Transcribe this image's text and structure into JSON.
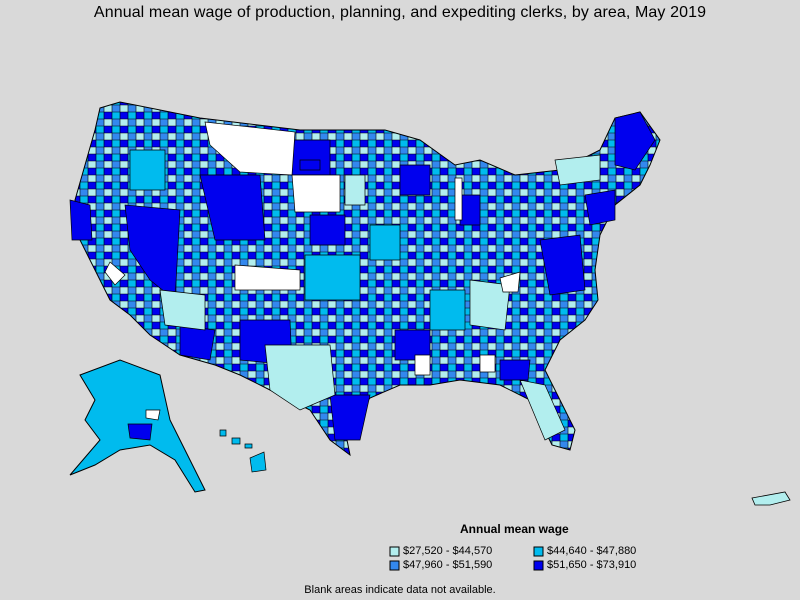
{
  "title": "Annual mean wage of production, planning, and expediting clerks, by area, May 2019",
  "colors": {
    "background": "#d9d9d9",
    "no_data": "#ffffff",
    "border": "#000000",
    "c1": "#b2eeee",
    "c2": "#00bbee",
    "c3": "#3388ee",
    "c4": "#0000ee"
  },
  "legend": {
    "title": "Annual mean wage",
    "items": [
      {
        "label": "$27,520 - $44,570",
        "color": "#b2eeee"
      },
      {
        "label": "$44,640 - $47,880",
        "color": "#00bbee"
      },
      {
        "label": "$47,960 - $51,590",
        "color": "#3388ee"
      },
      {
        "label": "$51,650 - $73,910",
        "color": "#0000ee"
      }
    ]
  },
  "footnote": "Blank areas indicate data not available."
}
